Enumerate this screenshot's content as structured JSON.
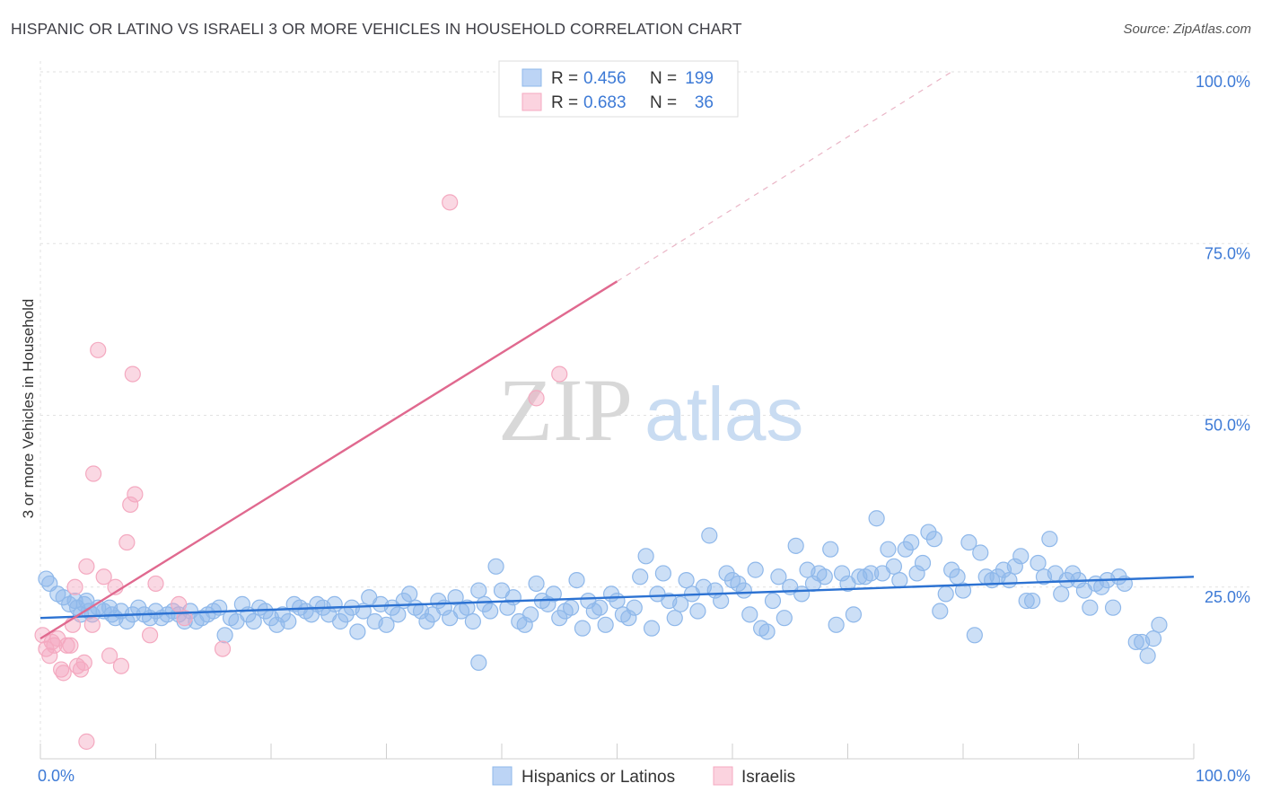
{
  "header": {
    "title": "HISPANIC OR LATINO VS ISRAELI 3 OR MORE VEHICLES IN HOUSEHOLD CORRELATION CHART",
    "source": "Source: ZipAtlas.com"
  },
  "watermark": {
    "zip": "ZIP",
    "atlas": "atlas"
  },
  "chart_data": {
    "type": "scatter",
    "title": "HISPANIC OR LATINO VS ISRAELI 3 OR MORE VEHICLES IN HOUSEHOLD CORRELATION CHART",
    "xlabel": "",
    "ylabel": "3 or more Vehicles in Household",
    "xlim": [
      0,
      100
    ],
    "ylim": [
      0,
      100
    ],
    "x_tick_labels": {
      "left": "0.0%",
      "right": "100.0%"
    },
    "y_ticks": [
      {
        "value": 25,
        "label": "25.0%"
      },
      {
        "value": 50,
        "label": "50.0%"
      },
      {
        "value": 75,
        "label": "75.0%"
      },
      {
        "value": 100,
        "label": "100.0%"
      }
    ],
    "grid": true,
    "legend_placement": "top-center",
    "stats": [
      {
        "r_label": "R = ",
        "r": "0.456",
        "n_label": "N = ",
        "n": "199",
        "color": "#6fa3e6"
      },
      {
        "r_label": "R = ",
        "r": "0.683",
        "n_label": "N = ",
        "n": "36",
        "color": "#f095b0"
      }
    ],
    "series": [
      {
        "name": "Hispanics or Latinos",
        "color": "#8fb8ea",
        "line_color": "#2c72d2",
        "trend": {
          "x0": 0,
          "y0": 20.5,
          "x1": 100,
          "y1": 26.5
        },
        "points": [
          [
            0.5,
            26.2
          ],
          [
            0.8,
            25.5
          ],
          [
            1.5,
            24
          ],
          [
            2,
            23.5
          ],
          [
            2.5,
            22.5
          ],
          [
            3,
            23
          ],
          [
            3.2,
            22
          ],
          [
            3.5,
            21
          ],
          [
            3.8,
            22.5
          ],
          [
            4,
            23
          ],
          [
            4.2,
            21.5
          ],
          [
            4.5,
            21
          ],
          [
            5,
            22
          ],
          [
            5.5,
            21.5
          ],
          [
            6,
            22
          ],
          [
            6.2,
            21
          ],
          [
            6.5,
            20.5
          ],
          [
            7,
            21.5
          ],
          [
            7.5,
            20
          ],
          [
            8,
            21
          ],
          [
            8.5,
            22
          ],
          [
            9,
            21
          ],
          [
            9.5,
            20.5
          ],
          [
            10,
            21.5
          ],
          [
            10.5,
            20.5
          ],
          [
            11,
            21
          ],
          [
            11.5,
            21.5
          ],
          [
            12,
            21
          ],
          [
            12.5,
            20
          ],
          [
            13,
            21.5
          ],
          [
            13.5,
            20
          ],
          [
            14,
            20.5
          ],
          [
            14.5,
            21
          ],
          [
            15,
            21.5
          ],
          [
            15.5,
            22
          ],
          [
            16,
            18
          ],
          [
            16.5,
            20.5
          ],
          [
            17,
            20
          ],
          [
            17.5,
            22.5
          ],
          [
            18,
            21
          ],
          [
            18.5,
            20
          ],
          [
            19,
            22
          ],
          [
            19.5,
            21.5
          ],
          [
            20,
            20.5
          ],
          [
            20.5,
            19.5
          ],
          [
            21,
            21
          ],
          [
            21.5,
            20
          ],
          [
            22,
            22.5
          ],
          [
            22.5,
            22
          ],
          [
            23,
            21.5
          ],
          [
            23.5,
            21
          ],
          [
            24,
            22.5
          ],
          [
            24.5,
            22
          ],
          [
            25,
            21
          ],
          [
            25.5,
            22.5
          ],
          [
            26,
            20
          ],
          [
            26.5,
            21
          ],
          [
            27,
            22
          ],
          [
            27.5,
            18.5
          ],
          [
            28,
            21.5
          ],
          [
            28.5,
            23.5
          ],
          [
            29,
            20
          ],
          [
            29.5,
            22.5
          ],
          [
            30,
            19.5
          ],
          [
            30.5,
            22
          ],
          [
            31,
            21
          ],
          [
            31.5,
            23
          ],
          [
            32,
            24
          ],
          [
            32.5,
            22
          ],
          [
            33,
            21.5
          ],
          [
            33.5,
            20
          ],
          [
            34,
            21
          ],
          [
            34.5,
            23
          ],
          [
            35,
            22
          ],
          [
            35.5,
            20.5
          ],
          [
            36,
            23.5
          ],
          [
            36.5,
            21.5
          ],
          [
            37,
            22
          ],
          [
            37.5,
            20
          ],
          [
            38,
            24.5
          ],
          [
            38.5,
            22.5
          ],
          [
            39,
            21.5
          ],
          [
            39.5,
            28
          ],
          [
            40,
            24.5
          ],
          [
            40.5,
            22
          ],
          [
            41,
            23.5
          ],
          [
            41.5,
            20
          ],
          [
            42,
            19.5
          ],
          [
            42.5,
            21
          ],
          [
            43,
            25.5
          ],
          [
            43.5,
            23
          ],
          [
            44,
            22.5
          ],
          [
            44.5,
            24
          ],
          [
            45,
            20.5
          ],
          [
            45.5,
            21.5
          ],
          [
            46,
            22
          ],
          [
            46.5,
            26
          ],
          [
            47,
            19
          ],
          [
            47.5,
            23
          ],
          [
            48,
            21.5
          ],
          [
            48.5,
            22
          ],
          [
            49,
            19.5
          ],
          [
            49.5,
            24
          ],
          [
            50,
            23
          ],
          [
            50.5,
            21
          ],
          [
            51,
            20.5
          ],
          [
            51.5,
            22
          ],
          [
            52,
            26.5
          ],
          [
            52.5,
            29.5
          ],
          [
            53,
            19
          ],
          [
            53.5,
            24
          ],
          [
            54,
            27
          ],
          [
            54.5,
            23
          ],
          [
            55,
            20.5
          ],
          [
            55.5,
            22.5
          ],
          [
            56,
            26
          ],
          [
            56.5,
            24
          ],
          [
            57,
            21.5
          ],
          [
            57.5,
            25
          ],
          [
            58,
            32.5
          ],
          [
            58.5,
            24.5
          ],
          [
            59,
            23
          ],
          [
            59.5,
            27
          ],
          [
            60,
            26
          ],
          [
            60.5,
            25.5
          ],
          [
            61,
            24.5
          ],
          [
            61.5,
            21
          ],
          [
            62,
            27.5
          ],
          [
            62.5,
            19
          ],
          [
            63,
            18.5
          ],
          [
            63.5,
            23
          ],
          [
            64,
            26.5
          ],
          [
            64.5,
            20.5
          ],
          [
            65,
            25
          ],
          [
            65.5,
            31
          ],
          [
            66,
            24
          ],
          [
            66.5,
            27.5
          ],
          [
            67,
            25.5
          ],
          [
            67.5,
            27
          ],
          [
            68,
            26.5
          ],
          [
            68.5,
            30.5
          ],
          [
            69,
            19.5
          ],
          [
            69.5,
            27
          ],
          [
            70,
            25.5
          ],
          [
            70.5,
            21
          ],
          [
            71,
            26.5
          ],
          [
            71.5,
            26.5
          ],
          [
            72,
            27
          ],
          [
            72.5,
            35
          ],
          [
            73,
            27
          ],
          [
            73.5,
            30.5
          ],
          [
            74,
            28
          ],
          [
            74.5,
            26
          ],
          [
            75,
            30.5
          ],
          [
            75.5,
            31.5
          ],
          [
            76,
            27
          ],
          [
            76.5,
            28.5
          ],
          [
            77,
            33
          ],
          [
            77.5,
            32
          ],
          [
            78,
            21.5
          ],
          [
            78.5,
            24
          ],
          [
            79,
            27.5
          ],
          [
            79.5,
            26.5
          ],
          [
            80,
            24.5
          ],
          [
            80.5,
            31.5
          ],
          [
            81,
            18
          ],
          [
            81.5,
            30
          ],
          [
            82,
            26.5
          ],
          [
            82.5,
            26
          ],
          [
            83,
            26.5
          ],
          [
            83.5,
            27.5
          ],
          [
            84,
            26
          ],
          [
            84.5,
            28
          ],
          [
            85,
            29.5
          ],
          [
            85.5,
            23
          ],
          [
            86,
            23
          ],
          [
            86.5,
            28.5
          ],
          [
            87,
            26.5
          ],
          [
            87.5,
            32
          ],
          [
            88,
            27
          ],
          [
            88.5,
            24
          ],
          [
            89,
            26
          ],
          [
            89.5,
            27
          ],
          [
            90,
            26
          ],
          [
            90.5,
            24.5
          ],
          [
            91,
            22
          ],
          [
            91.5,
            25.5
          ],
          [
            92,
            25
          ],
          [
            92.5,
            26
          ],
          [
            93,
            22
          ],
          [
            93.5,
            26.5
          ],
          [
            94,
            25.5
          ],
          [
            95,
            17
          ],
          [
            95.5,
            17
          ],
          [
            96,
            15
          ],
          [
            96.5,
            17.5
          ],
          [
            97,
            19.5
          ],
          [
            38,
            14
          ]
        ]
      },
      {
        "name": "Israelis",
        "color": "#f4a9c0",
        "line_color": "#e0698f",
        "trend": {
          "x0": 0,
          "y0": 17.5,
          "x1": 50,
          "y1": 69.5
        },
        "trend_ext": {
          "x0": 50,
          "y0": 69.5,
          "x1": 79,
          "y1": 100
        },
        "points": [
          [
            0.2,
            18
          ],
          [
            0.5,
            16
          ],
          [
            0.8,
            15
          ],
          [
            1,
            17
          ],
          [
            1.2,
            16.5
          ],
          [
            1.5,
            17.5
          ],
          [
            1.8,
            13
          ],
          [
            2,
            12.5
          ],
          [
            2.3,
            16.5
          ],
          [
            2.6,
            16.5
          ],
          [
            2.8,
            19.5
          ],
          [
            3,
            25
          ],
          [
            3.2,
            13.5
          ],
          [
            3.5,
            13
          ],
          [
            3.8,
            14
          ],
          [
            4,
            28
          ],
          [
            4.5,
            19.5
          ],
          [
            4.6,
            41.5
          ],
          [
            5,
            59.5
          ],
          [
            5.5,
            26.5
          ],
          [
            6,
            15
          ],
          [
            6.5,
            25
          ],
          [
            7,
            13.5
          ],
          [
            7.5,
            31.5
          ],
          [
            7.8,
            37
          ],
          [
            8,
            56
          ],
          [
            8.2,
            38.5
          ],
          [
            9.5,
            18
          ],
          [
            10,
            25.5
          ],
          [
            12,
            22.5
          ],
          [
            12.5,
            20.5
          ],
          [
            15.8,
            16
          ],
          [
            35.5,
            81
          ],
          [
            43,
            52.5
          ],
          [
            45,
            56
          ],
          [
            4,
            2.5
          ]
        ]
      }
    ]
  },
  "legend_bottom": [
    {
      "label": "Hispanics or Latinos",
      "color": "#8fb8ea"
    },
    {
      "label": "Israelis",
      "color": "#f4a9c0"
    }
  ]
}
